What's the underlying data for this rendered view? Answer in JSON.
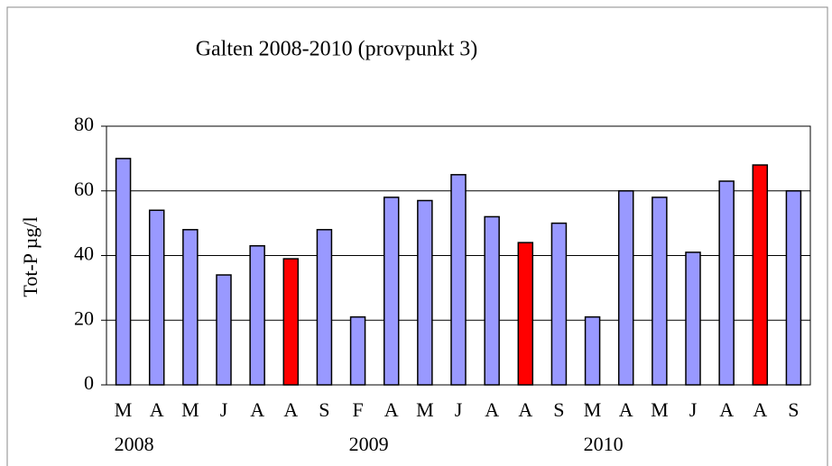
{
  "chart_data": {
    "type": "bar",
    "title": "Galten 2008-2010 (provpunkt 3)",
    "y_label": "Tot-P µg/l",
    "categories": [
      "M",
      "A",
      "M",
      "J",
      "A",
      "A",
      "S",
      "F",
      "A",
      "M",
      "J",
      "A",
      "A",
      "S",
      "M",
      "A",
      "M",
      "J",
      "A",
      "A",
      "S"
    ],
    "category_groups": [
      "2008",
      null,
      null,
      null,
      null,
      null,
      null,
      "2009",
      null,
      null,
      null,
      null,
      null,
      null,
      "2010",
      null,
      null,
      null,
      null,
      null,
      null
    ],
    "values": [
      70,
      54,
      48,
      34,
      43,
      39,
      48,
      21,
      58,
      57,
      65,
      52,
      44,
      50,
      21,
      60,
      58,
      41,
      63,
      68,
      60
    ],
    "colors": [
      "#9999ff",
      "#9999ff",
      "#9999ff",
      "#9999ff",
      "#9999ff",
      "#ff0000",
      "#9999ff",
      "#9999ff",
      "#9999ff",
      "#9999ff",
      "#9999ff",
      "#9999ff",
      "#ff0000",
      "#9999ff",
      "#9999ff",
      "#9999ff",
      "#9999ff",
      "#9999ff",
      "#9999ff",
      "#ff0000",
      "#9999ff"
    ],
    "ylim": [
      0,
      80
    ],
    "yticks": [
      0,
      20,
      40,
      60,
      80
    ],
    "grid": true
  }
}
